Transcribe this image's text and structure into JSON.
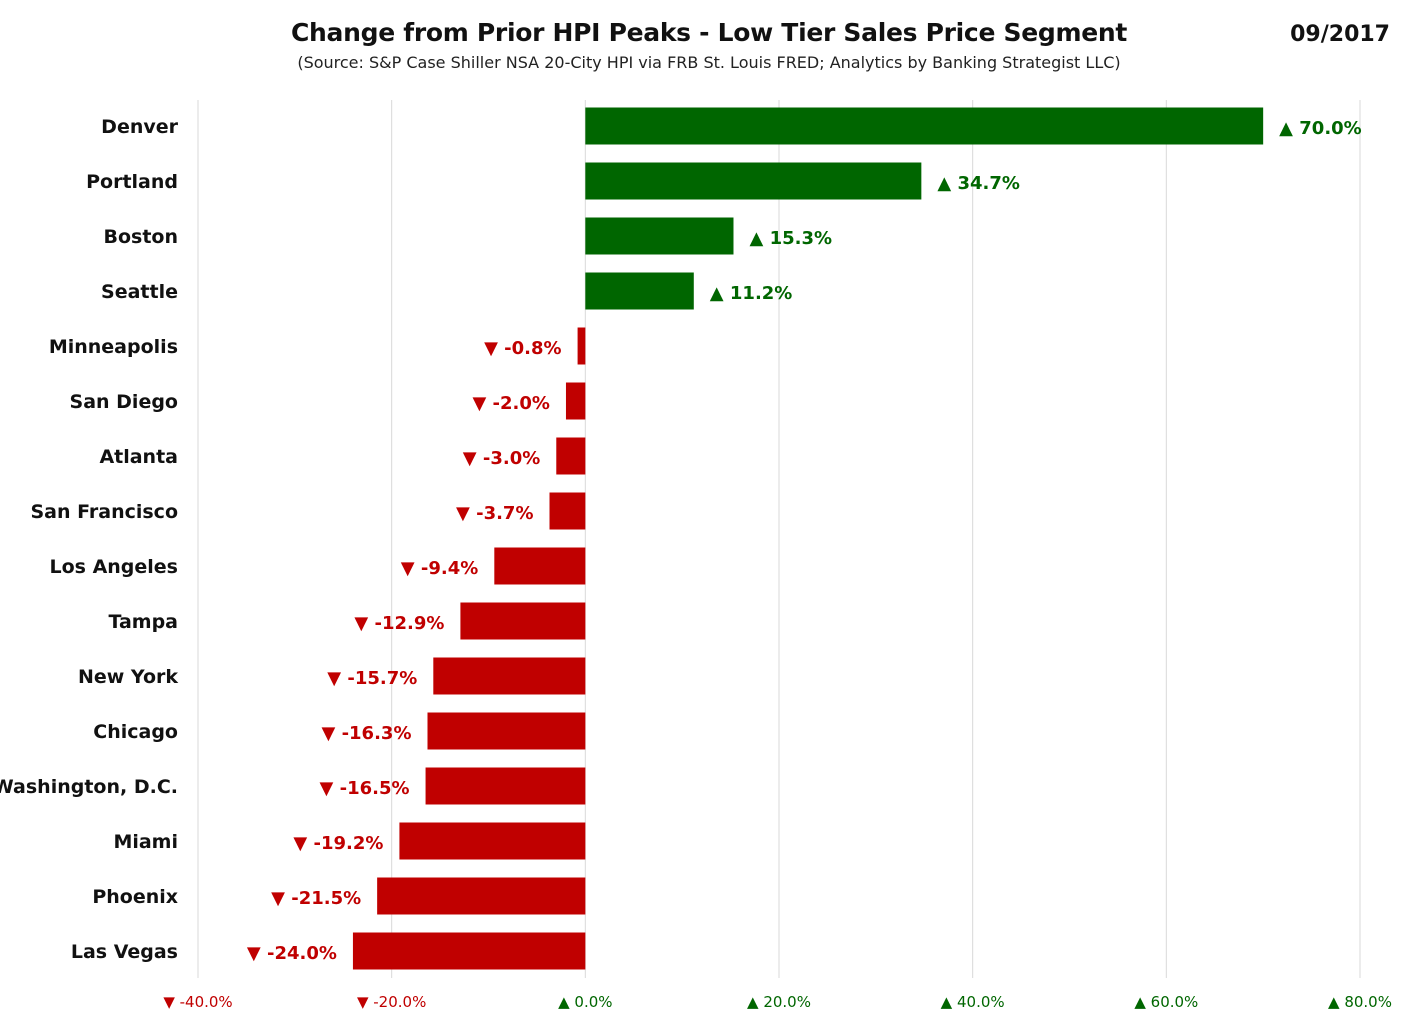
{
  "chart_data": {
    "type": "bar",
    "orientation": "horizontal",
    "title": "Change from Prior HPI Peaks - Low Tier Sales Price Segment",
    "subtitle": "(Source: S&P Case Shiller NSA 20-City HPI via FRB St. Louis FRED; Analytics by Banking Strategist LLC)",
    "date_label": "09/2017",
    "categories": [
      "Denver",
      "Portland",
      "Boston",
      "Seattle",
      "Minneapolis",
      "San Diego",
      "Atlanta",
      "San Francisco",
      "Los Angeles",
      "Tampa",
      "New York",
      "Chicago",
      "Washington, D.C.",
      "Miami",
      "Phoenix",
      "Las Vegas"
    ],
    "values": [
      70.0,
      34.7,
      15.3,
      11.2,
      -0.8,
      -2.0,
      -3.0,
      -3.7,
      -9.4,
      -12.9,
      -15.7,
      -16.3,
      -16.5,
      -19.2,
      -21.5,
      -24.0
    ],
    "data_labels": [
      "▲ 70.0%",
      "▲ 34.7%",
      "▲ 15.3%",
      "▲ 11.2%",
      "▼ -0.8%",
      "▼ -2.0%",
      "▼ -3.0%",
      "▼ -3.7%",
      "▼ -9.4%",
      "▼ -12.9%",
      "▼ -15.7%",
      "▼ -16.3%",
      "▼ -16.5%",
      "▼ -19.2%",
      "▼ -21.5%",
      "▼ -24.0%"
    ],
    "xlim": [
      -40,
      80
    ],
    "xticks": [
      -40,
      -20,
      0,
      20,
      40,
      60,
      80
    ],
    "xtick_labels": [
      "▼ -40.0%",
      "▼ -20.0%",
      "▲ 0.0%",
      "▲ 20.0%",
      "▲ 40.0%",
      "▲ 60.0%",
      "▲ 80.0%"
    ],
    "grid": "vertical",
    "legend": "none",
    "colors": {
      "positive": "#006600",
      "negative": "#c00000",
      "gridline": "#d9d9d9"
    }
  }
}
